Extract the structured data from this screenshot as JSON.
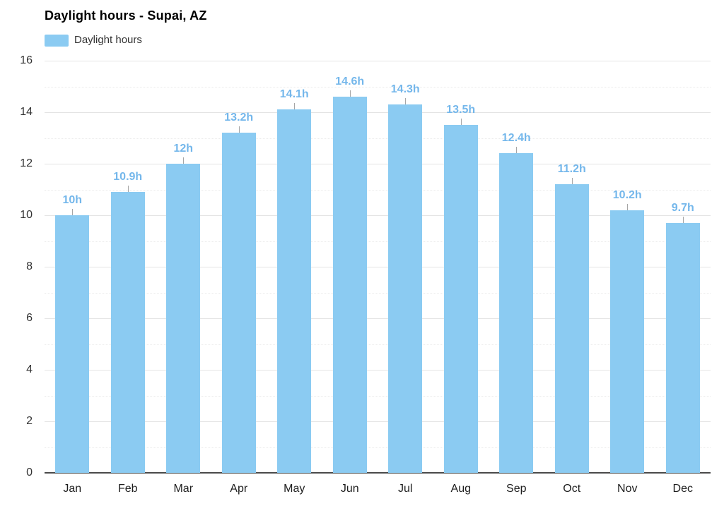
{
  "chart_data": {
    "type": "bar",
    "title": "Daylight hours - Supai, AZ",
    "legend": [
      {
        "label": "Daylight hours",
        "color": "#8BCBF2"
      }
    ],
    "legend_position": "top-left",
    "categories": [
      "Jan",
      "Feb",
      "Mar",
      "Apr",
      "May",
      "Jun",
      "Jul",
      "Aug",
      "Sep",
      "Oct",
      "Nov",
      "Dec"
    ],
    "values": [
      10,
      10.9,
      12,
      13.2,
      14.1,
      14.6,
      14.3,
      13.5,
      12.4,
      11.2,
      10.2,
      9.7
    ],
    "bar_labels": [
      "10h",
      "10.9h",
      "12h",
      "13.2h",
      "14.1h",
      "14.6h",
      "14.3h",
      "13.5h",
      "12.4h",
      "11.2h",
      "10.2h",
      "9.7h"
    ],
    "xlabel": "",
    "ylabel": "",
    "ylim": [
      0,
      16
    ],
    "yticks": [
      0,
      2,
      4,
      6,
      8,
      10,
      12,
      14,
      16
    ],
    "minor_tick_step": 1,
    "grid": "on",
    "colors": {
      "bar": "#8BCBF2",
      "bar_label": "#74B7EB",
      "axis_line": "#4a4a4a",
      "grid_major": "#e4e4e4",
      "grid_minor": "#ebebeb",
      "tick_text": "#333333",
      "title_text": "#000000"
    }
  }
}
